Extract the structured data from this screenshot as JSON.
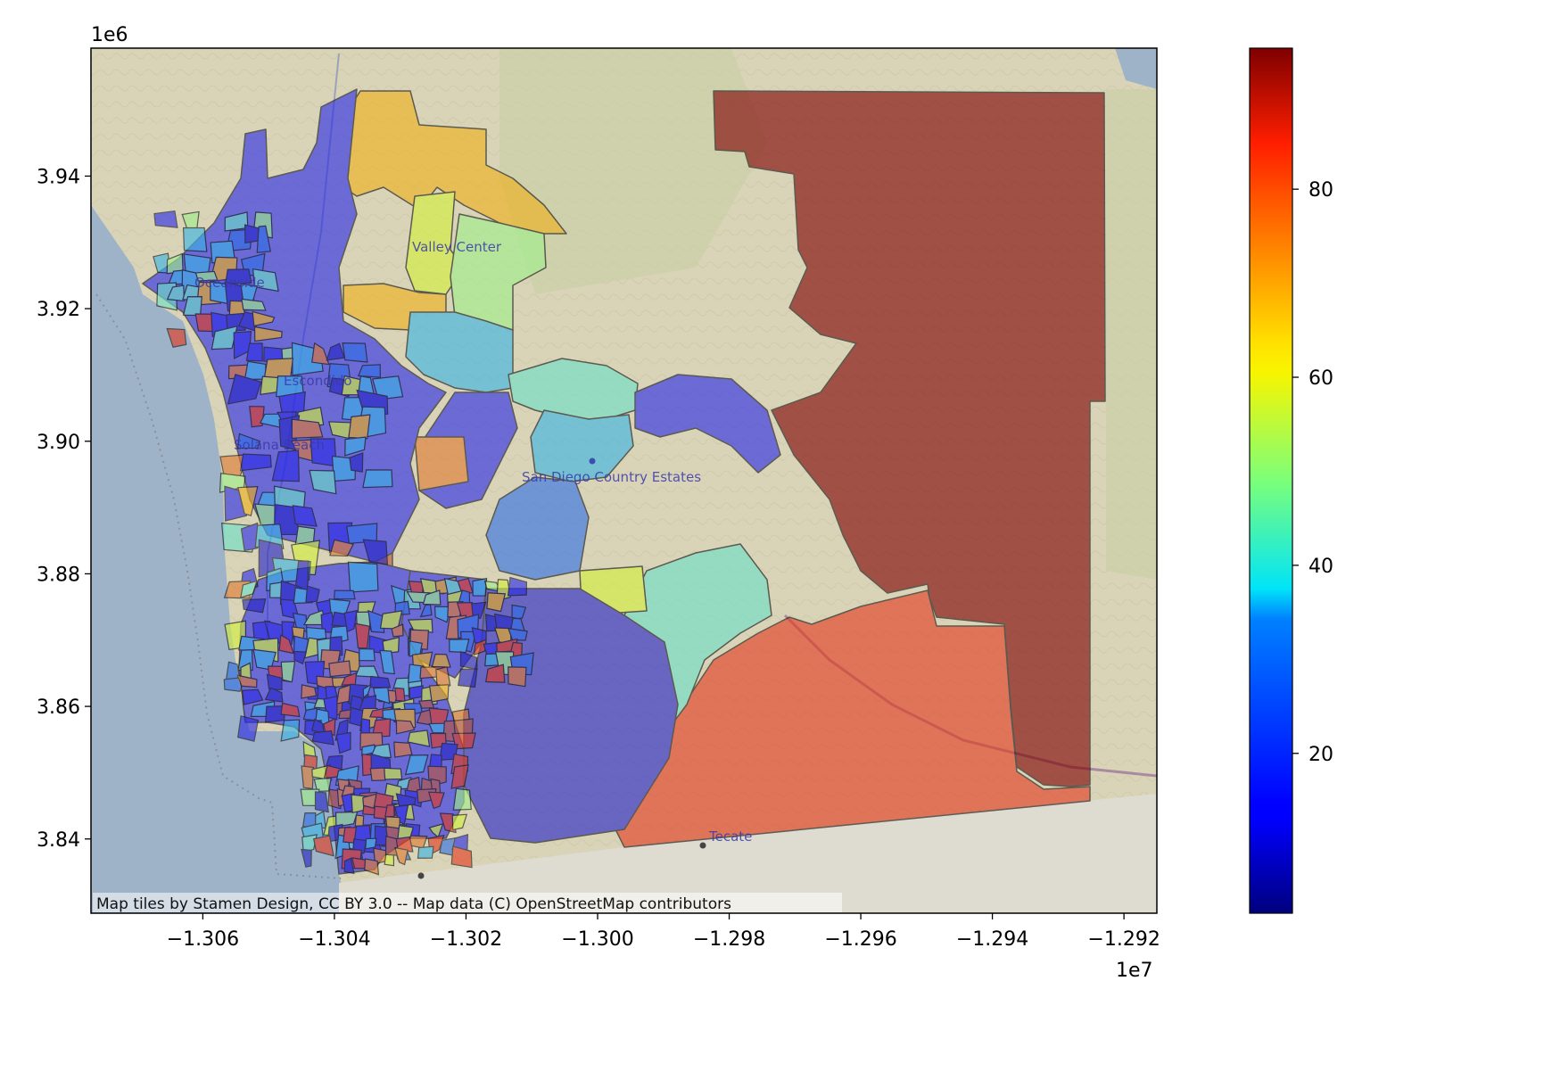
{
  "map": {
    "x_offset_label": "1e7",
    "y_offset_label": "1e6",
    "x_ticks": [
      {
        "label": "−1.306",
        "value": -1.306
      },
      {
        "label": "−1.304",
        "value": -1.304
      },
      {
        "label": "−1.302",
        "value": -1.302
      },
      {
        "label": "−1.300",
        "value": -1.3
      },
      {
        "label": "−1.298",
        "value": -1.298
      },
      {
        "label": "−1.296",
        "value": -1.296
      },
      {
        "label": "−1.294",
        "value": -1.294
      },
      {
        "label": "−1.292",
        "value": -1.292
      }
    ],
    "y_ticks": [
      {
        "label": "3.94",
        "value": 3.94
      },
      {
        "label": "3.92",
        "value": 3.92
      },
      {
        "label": "3.90",
        "value": 3.9
      },
      {
        "label": "3.88",
        "value": 3.88
      },
      {
        "label": "3.86",
        "value": 3.86
      },
      {
        "label": "3.84",
        "value": 3.84
      }
    ],
    "attribution": "Map tiles by Stamen Design, CC BY 3.0 -- Map data (C) OpenStreetMap contributors",
    "place_labels": [
      "Oceanside",
      "Escondido",
      "Valley Center",
      "Solana Beach",
      "San Diego Country Estates",
      "Tecate"
    ]
  },
  "colorbar": {
    "colormap": "jet",
    "range": [
      3,
      95
    ],
    "ticks": [
      {
        "label": "20",
        "value": 20
      },
      {
        "label": "40",
        "value": 40
      },
      {
        "label": "60",
        "value": 60
      },
      {
        "label": "80",
        "value": 80
      }
    ]
  },
  "colors": {
    "ocean": "#9fb3c8",
    "land": "#d9d4b8",
    "border": "#1a1a1a"
  }
}
